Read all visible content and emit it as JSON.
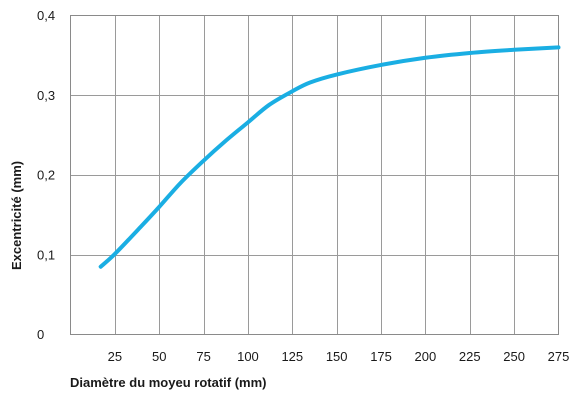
{
  "chart_data": {
    "type": "line",
    "title": "",
    "xlabel": "Diamètre du moyeu rotatif (mm)",
    "ylabel": "Excentricité (mm)",
    "xlim": [
      0,
      275
    ],
    "ylim": [
      0,
      0.4
    ],
    "x_ticks": [
      25,
      50,
      75,
      100,
      125,
      150,
      175,
      200,
      225,
      250,
      275
    ],
    "x_tick_labels": [
      "25",
      "50",
      "75",
      "100",
      "125",
      "150",
      "175",
      "200",
      "225",
      "250",
      "275"
    ],
    "y_ticks": [
      0,
      0.1,
      0.2,
      0.3,
      0.4
    ],
    "y_tick_labels": [
      "0",
      "0,1",
      "0,2",
      "0,3",
      "0,4"
    ],
    "grid": true,
    "legend": "none",
    "series": [
      {
        "color": "#1aaee3",
        "x": [
          17,
          25,
          40,
          50,
          62,
          75,
          87,
          100,
          112,
          125,
          135,
          150,
          175,
          200,
          225,
          250,
          275
        ],
        "y": [
          0.085,
          0.101,
          0.136,
          0.16,
          0.19,
          0.218,
          0.242,
          0.266,
          0.288,
          0.305,
          0.316,
          0.326,
          0.338,
          0.347,
          0.353,
          0.357,
          0.36
        ]
      }
    ]
  }
}
